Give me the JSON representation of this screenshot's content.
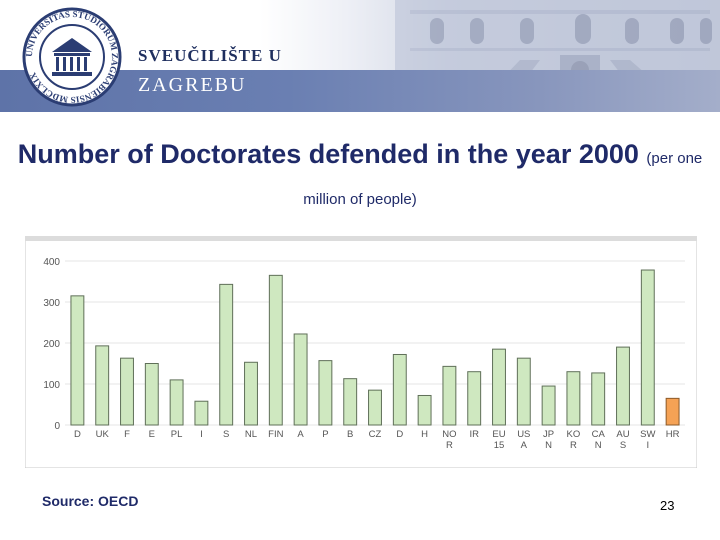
{
  "header": {
    "university_line1": "SVEUČILIŠTE U",
    "university_line2": "ZAGREBU",
    "logo_ring_text": "UNIVERSITAS STUDIORUM ZAGRABIENSIS MDCLXIX"
  },
  "title": {
    "main": "Number of Doctorates defended in the year 2000",
    "subtitle": "(per one million of people)"
  },
  "chart_data": {
    "type": "bar",
    "categories": [
      "D",
      "UK",
      "F",
      "E",
      "PL",
      "I",
      "S",
      "NL",
      "FIN",
      "A",
      "P",
      "B",
      "CZ",
      "D",
      "H",
      "NO R",
      "IR",
      "EU 15",
      "US A",
      "JP N",
      "KO R",
      "CA N",
      "AU S",
      "SW I",
      "HR"
    ],
    "category_lines": [
      [
        "D"
      ],
      [
        "UK"
      ],
      [
        "F"
      ],
      [
        "E"
      ],
      [
        "PL"
      ],
      [
        "I"
      ],
      [
        "S"
      ],
      [
        "NL"
      ],
      [
        "FIN"
      ],
      [
        "A"
      ],
      [
        "P"
      ],
      [
        "B"
      ],
      [
        "CZ"
      ],
      [
        "D"
      ],
      [
        "H"
      ],
      [
        "NO",
        "R"
      ],
      [
        "IR"
      ],
      [
        "EU",
        "15"
      ],
      [
        "US",
        "A"
      ],
      [
        "JP",
        "N"
      ],
      [
        "KO",
        "R"
      ],
      [
        "CA",
        "N"
      ],
      [
        "AU",
        "S"
      ],
      [
        "SW",
        "I"
      ],
      [
        "HR"
      ]
    ],
    "values": [
      315,
      193,
      163,
      150,
      110,
      58,
      343,
      153,
      365,
      222,
      157,
      113,
      85,
      172,
      72,
      143,
      130,
      185,
      163,
      95,
      130,
      127,
      190,
      378,
      65
    ],
    "highlight_index": 24,
    "yticks": [
      0,
      100,
      200,
      300,
      400
    ],
    "ylim": [
      0,
      400
    ],
    "colors": {
      "bar": "#cfe8c0",
      "bar_edge": "#5f6f58",
      "highlight": "#f5a255",
      "highlight_edge": "#8a5a2a",
      "axis_text": "#555555"
    }
  },
  "footer": {
    "source": "Source: OECD",
    "page_number": "23"
  }
}
